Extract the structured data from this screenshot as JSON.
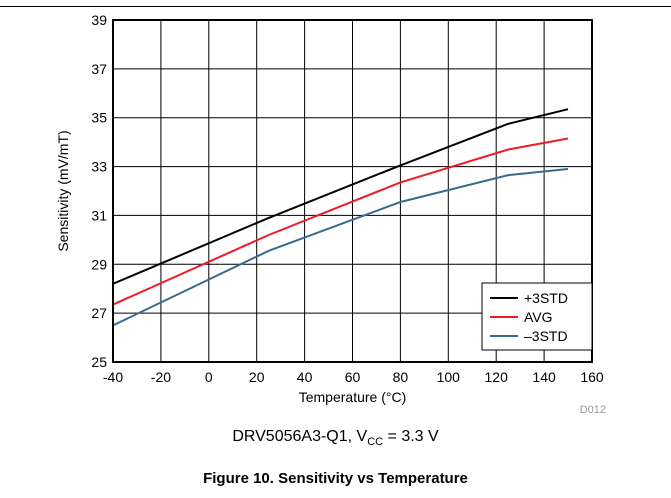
{
  "chart_data": {
    "type": "line",
    "xlabel": "Temperature (°C)",
    "ylabel": "Sensitivity (mV/mT)",
    "xlim": [
      -40,
      160
    ],
    "ylim": [
      25,
      39
    ],
    "xticks": [
      -40,
      -20,
      0,
      20,
      40,
      60,
      80,
      100,
      120,
      140,
      160
    ],
    "yticks": [
      25,
      27,
      29,
      31,
      33,
      35,
      37,
      39
    ],
    "grid": true,
    "legend_position": "bottom-right",
    "x": [
      -40,
      25,
      80,
      125,
      150
    ],
    "series": [
      {
        "name": "+3STD",
        "color": "#000000",
        "values": [
          28.2,
          30.9,
          33.05,
          34.75,
          35.35
        ]
      },
      {
        "name": "AVG",
        "color": "#ee1c25",
        "values": [
          27.35,
          30.2,
          32.35,
          33.7,
          34.15
        ]
      },
      {
        "name": "–3STD",
        "color": "#3b6b8c",
        "values": [
          26.5,
          29.55,
          31.55,
          32.65,
          32.9
        ]
      }
    ],
    "annotation": "D012"
  },
  "caption": {
    "prefix": "DRV5056A3-Q1, V",
    "subscript": "CC",
    "suffix": " = 3.3 V"
  },
  "figure_title": "Figure 10. Sensitivity vs Temperature"
}
